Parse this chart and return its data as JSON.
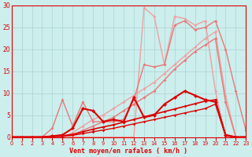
{
  "xlabel": "Vent moyen/en rafales ( km/h )",
  "xlim": [
    0,
    23
  ],
  "ylim": [
    0,
    30
  ],
  "xticks": [
    0,
    1,
    2,
    3,
    4,
    5,
    6,
    7,
    8,
    9,
    10,
    11,
    12,
    13,
    14,
    15,
    16,
    17,
    18,
    19,
    20,
    21,
    22,
    23
  ],
  "yticks": [
    0,
    5,
    10,
    15,
    20,
    25,
    30
  ],
  "bg_color": "#cceeed",
  "grid_color": "#aad4d2",
  "series": [
    {
      "x": [
        0,
        1,
        2,
        3,
        4,
        5,
        6,
        7,
        8,
        9,
        10,
        11,
        12,
        13,
        14,
        15,
        16,
        17,
        18,
        19,
        20,
        21,
        22,
        23
      ],
      "y": [
        0,
        0,
        0,
        0,
        0,
        0.5,
        0,
        0,
        0,
        0,
        0,
        0,
        0,
        29.5,
        27.5,
        16.5,
        27.5,
        27.0,
        25.5,
        26.5,
        10.5,
        0,
        0,
        0
      ],
      "color": "#f0a0a0",
      "lw": 1.0,
      "marker": "D",
      "ms": 2.0
    },
    {
      "x": [
        0,
        1,
        2,
        3,
        4,
        5,
        6,
        7,
        8,
        9,
        10,
        11,
        12,
        13,
        14,
        15,
        16,
        17,
        18,
        19,
        20,
        21,
        22,
        23
      ],
      "y": [
        0,
        0,
        0,
        0,
        0,
        0,
        1.0,
        2.5,
        4.0,
        5.0,
        6.5,
        8.0,
        9.5,
        11.0,
        12.5,
        14.5,
        16.5,
        18.5,
        20.5,
        22.5,
        24.0,
        9.5,
        0,
        0
      ],
      "color": "#f0a0a0",
      "lw": 1.0,
      "marker": "D",
      "ms": 2.0
    },
    {
      "comment": "medium pink jagged with peaks at x=5 (~8.5), x=7 (~8), x=13 (~16), x=14 (~16)",
      "x": [
        0,
        1,
        2,
        3,
        4,
        5,
        6,
        7,
        8,
        9,
        10,
        11,
        12,
        13,
        14,
        15,
        16,
        17,
        18,
        19,
        20,
        21,
        22,
        23
      ],
      "y": [
        0,
        0,
        0,
        0,
        2.0,
        8.5,
        2.5,
        8.0,
        3.5,
        3.5,
        3.5,
        4.0,
        8.5,
        16.5,
        16.0,
        16.5,
        25.5,
        26.5,
        24.5,
        25.0,
        26.5,
        20.0,
        10.5,
        1.5
      ],
      "color": "#e87878",
      "lw": 1.0,
      "marker": "D",
      "ms": 2.0
    },
    {
      "x": [
        0,
        1,
        2,
        3,
        4,
        5,
        6,
        7,
        8,
        9,
        10,
        11,
        12,
        13,
        14,
        15,
        16,
        17,
        18,
        19,
        20,
        21,
        22,
        23
      ],
      "y": [
        0,
        0,
        0,
        0,
        0,
        0,
        0.5,
        1.5,
        2.5,
        3.5,
        4.5,
        6.0,
        7.5,
        9.0,
        10.5,
        13.0,
        15.5,
        17.5,
        19.5,
        21.0,
        22.5,
        8.0,
        0,
        0
      ],
      "color": "#e87878",
      "lw": 1.0,
      "marker": "D",
      "ms": 2.0
    },
    {
      "x": [
        0,
        1,
        2,
        3,
        4,
        5,
        6,
        7,
        8,
        9,
        10,
        11,
        12,
        13,
        14,
        15,
        16,
        17,
        18,
        19,
        20,
        21,
        22,
        23
      ],
      "y": [
        0,
        0,
        0,
        0,
        0.2,
        0.5,
        2.0,
        6.5,
        6.0,
        3.5,
        4.0,
        3.5,
        9.0,
        4.5,
        5.0,
        7.5,
        9.0,
        10.5,
        9.5,
        8.5,
        8.0,
        0.5,
        0,
        0
      ],
      "color": "#dd0000",
      "lw": 1.5,
      "marker": "D",
      "ms": 2.5
    },
    {
      "x": [
        0,
        1,
        2,
        3,
        4,
        5,
        6,
        7,
        8,
        9,
        10,
        11,
        12,
        13,
        14,
        15,
        16,
        17,
        18,
        19,
        20,
        21,
        22,
        23
      ],
      "y": [
        0,
        0,
        0,
        0,
        0.1,
        0.2,
        0.4,
        0.8,
        1.2,
        1.6,
        2.0,
        2.5,
        3.0,
        3.5,
        4.0,
        4.5,
        5.0,
        5.5,
        6.0,
        6.5,
        7.5,
        0.3,
        0,
        0
      ],
      "color": "#dd0000",
      "lw": 1.0,
      "marker": "D",
      "ms": 1.8
    },
    {
      "x": [
        0,
        1,
        2,
        3,
        4,
        5,
        6,
        7,
        8,
        9,
        10,
        11,
        12,
        13,
        14,
        15,
        16,
        17,
        18,
        19,
        20,
        21,
        22,
        23
      ],
      "y": [
        0,
        0,
        0,
        0,
        0.2,
        0.3,
        0.6,
        1.2,
        1.8,
        2.3,
        2.8,
        3.4,
        4.0,
        4.6,
        5.2,
        5.8,
        6.4,
        7.0,
        7.6,
        8.2,
        8.5,
        0.4,
        0,
        0
      ],
      "color": "#dd0000",
      "lw": 1.2,
      "marker": "D",
      "ms": 2.0
    }
  ]
}
